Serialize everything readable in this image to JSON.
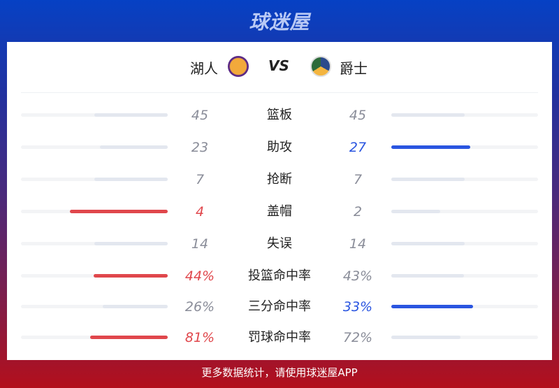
{
  "brand": "球迷屋",
  "home": {
    "name": "湖人",
    "logo": "lakers-logo",
    "color": "#e0474c"
  },
  "away": {
    "name": "爵士",
    "logo": "jazz-logo",
    "color": "#2a55e0"
  },
  "vs": "VS",
  "stats": [
    {
      "label": "篮板",
      "home": "45",
      "away": "45",
      "h": 45,
      "a": 45,
      "win": ""
    },
    {
      "label": "助攻",
      "home": "23",
      "away": "27",
      "h": 23,
      "a": 27,
      "win": "away"
    },
    {
      "label": "抢断",
      "home": "7",
      "away": "7",
      "h": 7,
      "a": 7,
      "win": ""
    },
    {
      "label": "盖帽",
      "home": "4",
      "away": "2",
      "h": 4,
      "a": 2,
      "win": "home"
    },
    {
      "label": "失误",
      "home": "14",
      "away": "14",
      "h": 14,
      "a": 14,
      "win": ""
    },
    {
      "label": "投篮命中率",
      "home": "44%",
      "away": "43%",
      "h": 44,
      "a": 43,
      "win": "home"
    },
    {
      "label": "三分命中率",
      "home": "26%",
      "away": "33%",
      "h": 26,
      "a": 33,
      "win": "away"
    },
    {
      "label": "罚球命中率",
      "home": "81%",
      "away": "72%",
      "h": 81,
      "a": 72,
      "win": "home"
    }
  ],
  "footer": "更多数据统计，请使用球迷屋APP"
}
